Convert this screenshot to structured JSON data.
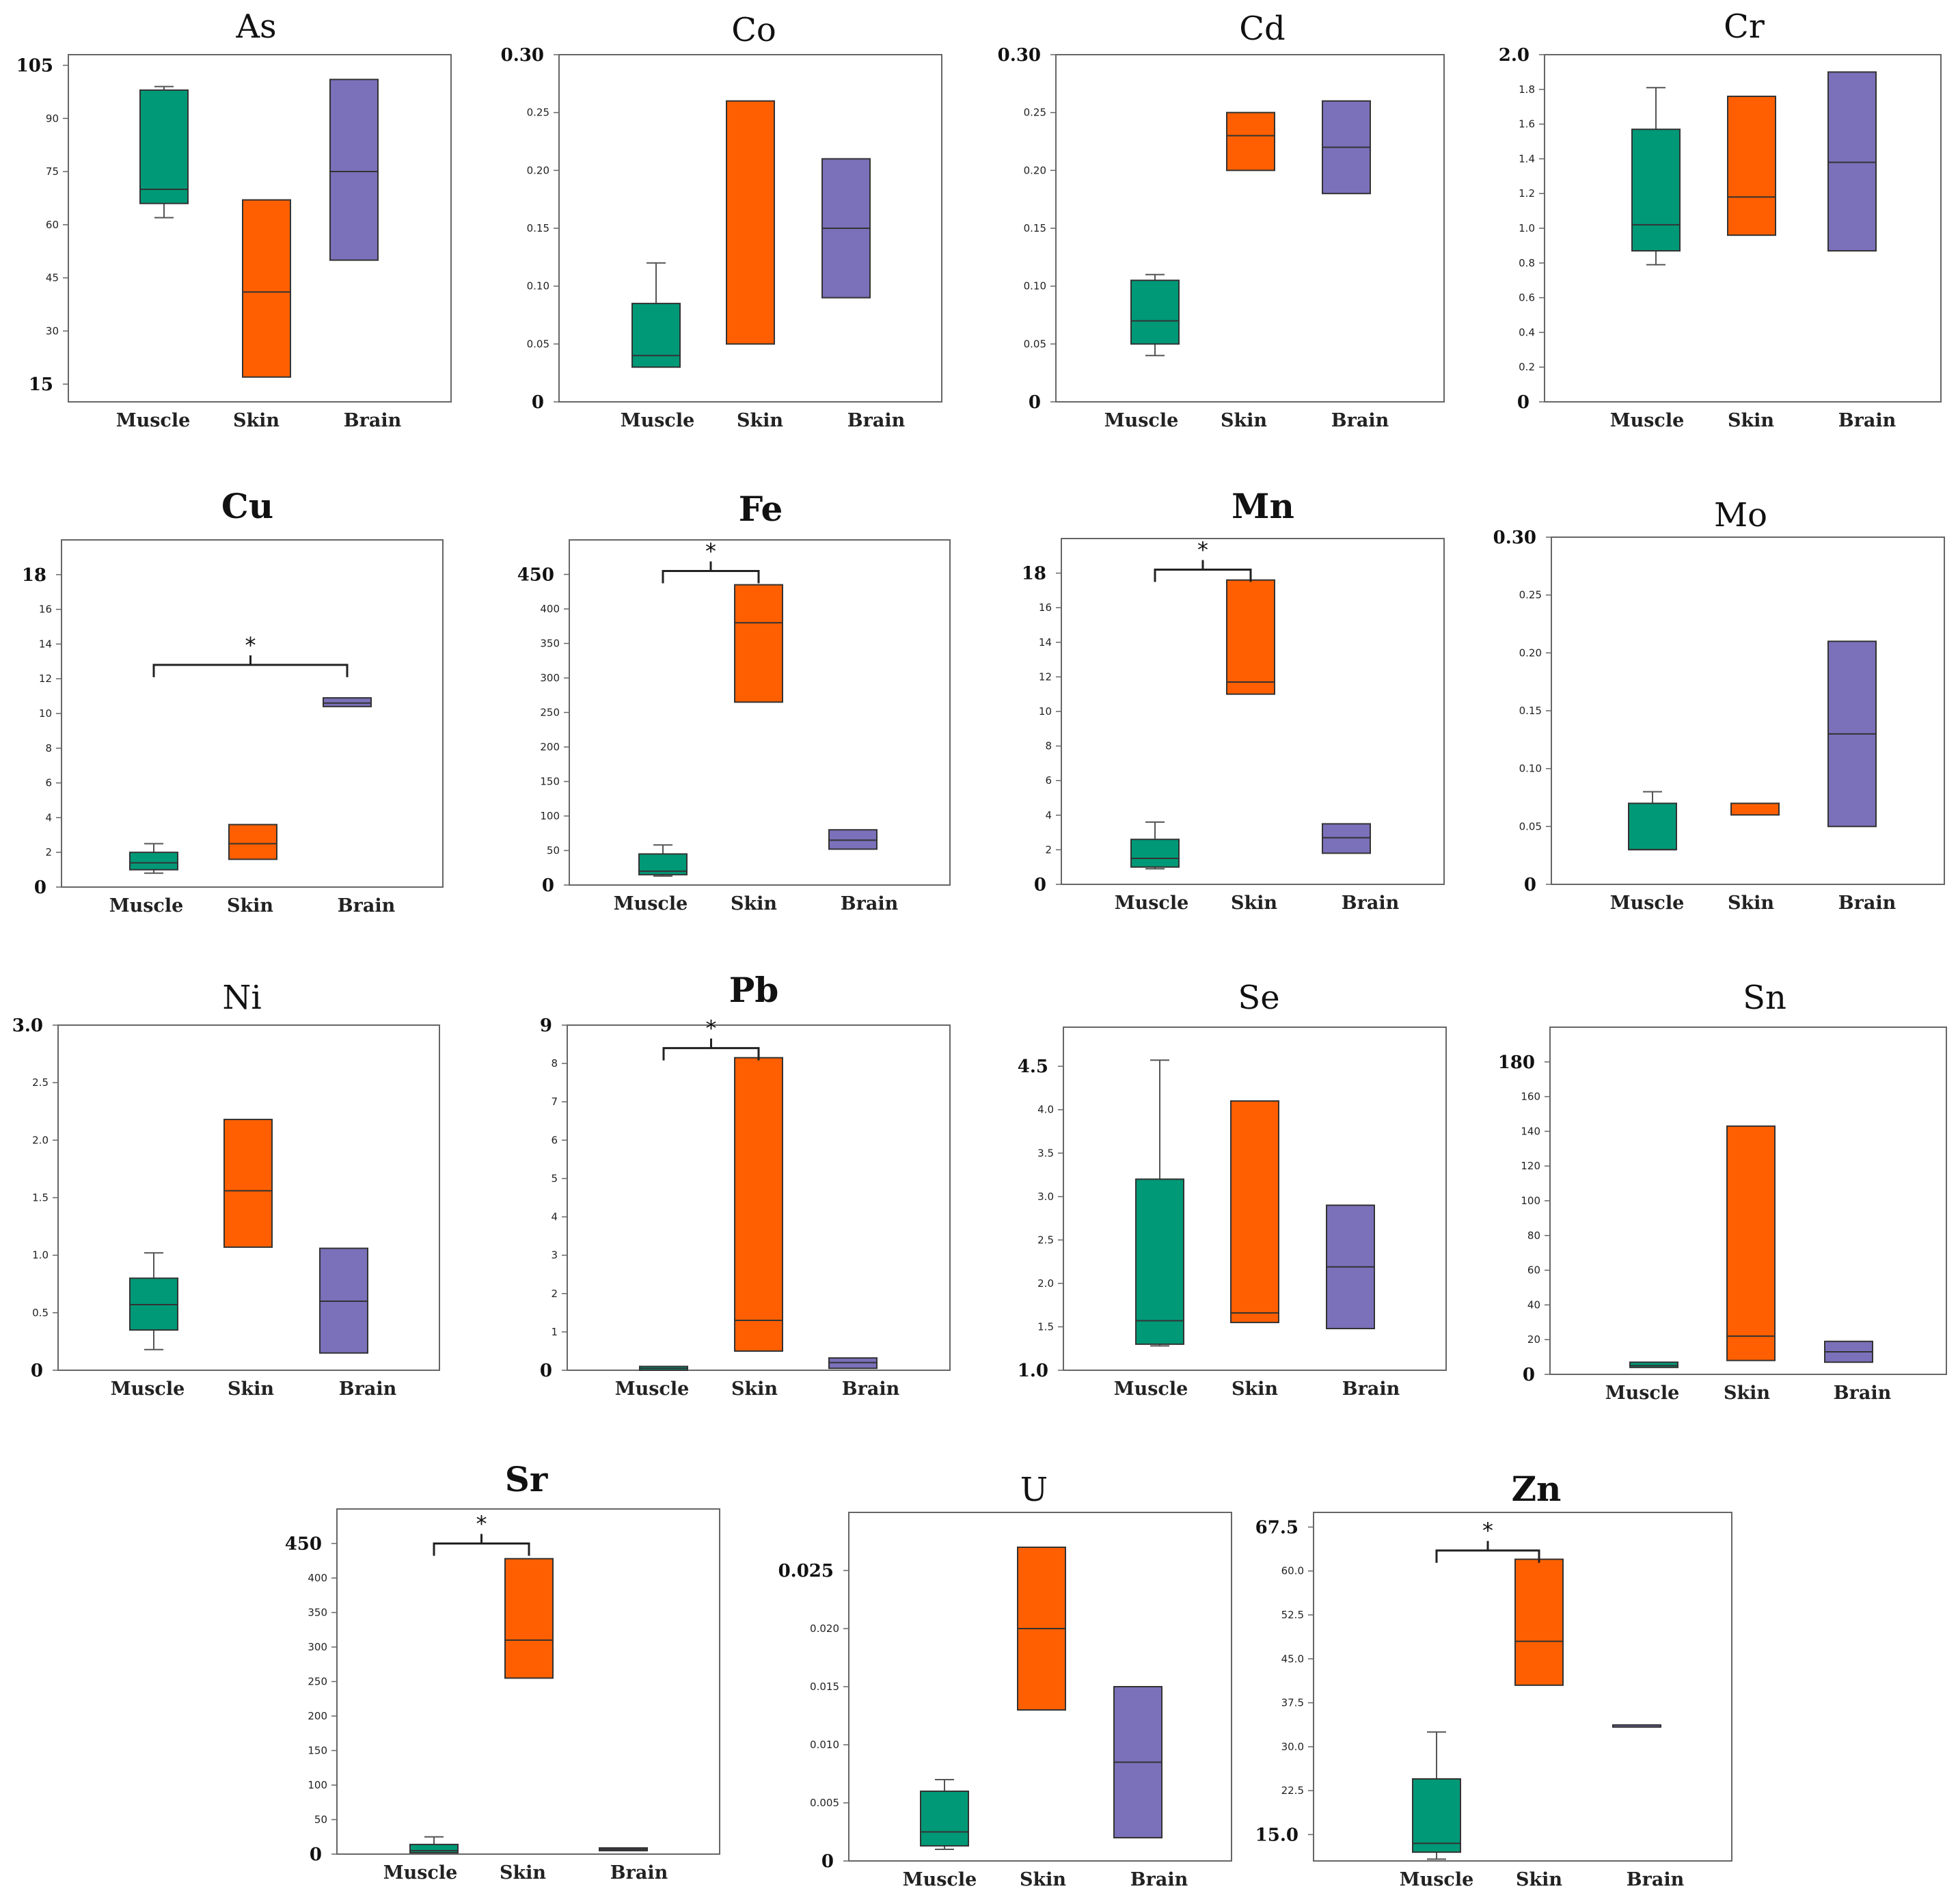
{
  "figure_description": "",
  "colors": {
    "Muscle": "#009977",
    "Skin": "#FF5F00",
    "Brain": "#7B70BA",
    "axis": "#666666",
    "text": "#111111"
  },
  "chart_data": [
    {
      "type": "box",
      "title": "As",
      "bold_title": false,
      "categories": [
        "Muscle",
        "Skin",
        "Brain"
      ],
      "ylim": [
        10,
        108
      ],
      "yticks": [
        15,
        30,
        45,
        60,
        75,
        90,
        105
      ],
      "major_ticks": [
        15,
        105
      ],
      "series": [
        {
          "name": "Muscle",
          "q1": 66,
          "median": 70,
          "q3": 98,
          "whisker_low": 62,
          "whisker_high": 99
        },
        {
          "name": "Skin",
          "q1": 17,
          "median": 41,
          "q3": 67,
          "whisker_low": null,
          "whisker_high": null
        },
        {
          "name": "Brain",
          "q1": 50,
          "median": 75,
          "q3": 101,
          "whisker_low": null,
          "whisker_high": null
        }
      ],
      "significance": null
    },
    {
      "type": "box",
      "title": "Co",
      "bold_title": false,
      "categories": [
        "Muscle",
        "Skin",
        "Brain"
      ],
      "ylim": [
        0,
        0.3
      ],
      "yticks": [
        0,
        0.05,
        0.1,
        0.15,
        0.2,
        0.25,
        0.3
      ],
      "ytick_labels": [
        "0",
        "0.05",
        "0.10",
        "0.15",
        "0.20",
        "0.25",
        "0.30"
      ],
      "major_ticks": [
        0,
        0.3
      ],
      "series": [
        {
          "name": "Muscle",
          "q1": 0.03,
          "median": 0.04,
          "q3": 0.085,
          "whisker_low": null,
          "whisker_high": 0.12
        },
        {
          "name": "Skin",
          "q1": 0.05,
          "median": null,
          "q3": 0.26,
          "whisker_low": null,
          "whisker_high": null
        },
        {
          "name": "Brain",
          "q1": 0.09,
          "median": 0.15,
          "q3": 0.21,
          "whisker_low": null,
          "whisker_high": null
        }
      ],
      "significance": null
    },
    {
      "type": "box",
      "title": "Cd",
      "bold_title": false,
      "categories": [
        "Muscle",
        "Skin",
        "Brain"
      ],
      "ylim": [
        0,
        0.3
      ],
      "yticks": [
        0,
        0.05,
        0.1,
        0.15,
        0.2,
        0.25,
        0.3
      ],
      "ytick_labels": [
        "0",
        "0.05",
        "0.10",
        "0.15",
        "0.20",
        "0.25",
        "0.30"
      ],
      "major_ticks": [
        0,
        0.3
      ],
      "series": [
        {
          "name": "Muscle",
          "q1": 0.05,
          "median": 0.07,
          "q3": 0.105,
          "whisker_low": 0.04,
          "whisker_high": 0.11
        },
        {
          "name": "Skin",
          "q1": 0.2,
          "median": 0.23,
          "q3": 0.25,
          "whisker_low": null,
          "whisker_high": null
        },
        {
          "name": "Brain",
          "q1": 0.18,
          "median": 0.22,
          "q3": 0.26,
          "whisker_low": null,
          "whisker_high": null
        }
      ],
      "significance": null
    },
    {
      "type": "box",
      "title": "Cr",
      "bold_title": false,
      "categories": [
        "Muscle",
        "Skin",
        "Brain"
      ],
      "ylim": [
        0,
        2.0
      ],
      "yticks": [
        0,
        0.2,
        0.4,
        0.6,
        0.8,
        1.0,
        1.2,
        1.4,
        1.6,
        1.8,
        2.0
      ],
      "ytick_labels": [
        "0",
        "0.2",
        "0.4",
        "0.6",
        "0.8",
        "1.0",
        "1.2",
        "1.4",
        "1.6",
        "1.8",
        "2.0"
      ],
      "major_ticks": [
        0,
        2.0
      ],
      "series": [
        {
          "name": "Muscle",
          "q1": 0.87,
          "median": 1.02,
          "q3": 1.57,
          "whisker_low": 0.79,
          "whisker_high": 1.81
        },
        {
          "name": "Skin",
          "q1": 0.96,
          "median": 1.18,
          "q3": 1.76,
          "whisker_low": null,
          "whisker_high": null
        },
        {
          "name": "Brain",
          "q1": 0.87,
          "median": 1.38,
          "q3": 1.9,
          "whisker_low": null,
          "whisker_high": null
        }
      ],
      "significance": null
    },
    {
      "type": "box",
      "title": "Cu",
      "bold_title": true,
      "categories": [
        "Muscle",
        "Skin",
        "Brain"
      ],
      "ylim": [
        0,
        20
      ],
      "yticks": [
        0,
        2,
        4,
        6,
        8,
        10,
        12,
        14,
        16,
        18
      ],
      "major_ticks": [
        0,
        18
      ],
      "series": [
        {
          "name": "Muscle",
          "q1": 1.0,
          "median": 1.4,
          "q3": 2.0,
          "whisker_low": 0.8,
          "whisker_high": 2.5
        },
        {
          "name": "Skin",
          "q1": 1.6,
          "median": 2.5,
          "q3": 3.6,
          "whisker_low": null,
          "whisker_high": null
        },
        {
          "name": "Brain",
          "q1": 10.4,
          "median": 10.6,
          "q3": 10.9,
          "whisker_low": null,
          "whisker_high": null
        }
      ],
      "significance": {
        "from": "Muscle",
        "to": "Brain",
        "y": 12.8,
        "label": "*"
      }
    },
    {
      "type": "box",
      "title": "Fe",
      "bold_title": true,
      "categories": [
        "Muscle",
        "Skin",
        "Brain"
      ],
      "ylim": [
        0,
        500
      ],
      "yticks": [
        0,
        50,
        100,
        150,
        200,
        250,
        300,
        350,
        400,
        450
      ],
      "major_ticks": [
        0,
        450
      ],
      "series": [
        {
          "name": "Muscle",
          "q1": 15,
          "median": 20,
          "q3": 45,
          "whisker_low": 13,
          "whisker_high": 58
        },
        {
          "name": "Skin",
          "q1": 265,
          "median": 380,
          "q3": 435,
          "whisker_low": null,
          "whisker_high": null
        },
        {
          "name": "Brain",
          "q1": 52,
          "median": 65,
          "q3": 80,
          "whisker_low": null,
          "whisker_high": null
        }
      ],
      "significance": {
        "from": "Muscle",
        "to": "Skin",
        "y": 455,
        "label": "*"
      }
    },
    {
      "type": "box",
      "title": "Mn",
      "bold_title": true,
      "categories": [
        "Muscle",
        "Skin",
        "Brain"
      ],
      "ylim": [
        0,
        20
      ],
      "yticks": [
        0,
        2,
        4,
        6,
        8,
        10,
        12,
        14,
        16,
        18
      ],
      "major_ticks": [
        0,
        18
      ],
      "series": [
        {
          "name": "Muscle",
          "q1": 1.0,
          "median": 1.5,
          "q3": 2.6,
          "whisker_low": 0.9,
          "whisker_high": 3.6
        },
        {
          "name": "Skin",
          "q1": 11.0,
          "median": 11.7,
          "q3": 17.6,
          "whisker_low": null,
          "whisker_high": null
        },
        {
          "name": "Brain",
          "q1": 1.8,
          "median": 2.7,
          "q3": 3.5,
          "whisker_low": null,
          "whisker_high": null
        }
      ],
      "significance": {
        "from": "Muscle",
        "to": "Skin",
        "y": 18.2,
        "label": "*"
      }
    },
    {
      "type": "box",
      "title": "Mo",
      "bold_title": false,
      "categories": [
        "Muscle",
        "Skin",
        "Brain"
      ],
      "ylim": [
        0,
        0.3
      ],
      "yticks": [
        0,
        0.05,
        0.1,
        0.15,
        0.2,
        0.25,
        0.3
      ],
      "ytick_labels": [
        "0",
        "0.05",
        "0.10",
        "0.15",
        "0.20",
        "0.25",
        "0.30"
      ],
      "major_ticks": [
        0,
        0.3
      ],
      "series": [
        {
          "name": "Muscle",
          "q1": 0.03,
          "median": 0.03,
          "q3": 0.07,
          "whisker_low": null,
          "whisker_high": 0.08
        },
        {
          "name": "Skin",
          "q1": 0.06,
          "median": 0.07,
          "q3": 0.07,
          "whisker_low": null,
          "whisker_high": null
        },
        {
          "name": "Brain",
          "q1": 0.05,
          "median": 0.13,
          "q3": 0.21,
          "whisker_low": null,
          "whisker_high": null
        }
      ],
      "significance": null
    },
    {
      "type": "box",
      "title": "Ni",
      "bold_title": false,
      "categories": [
        "Muscle",
        "Skin",
        "Brain"
      ],
      "ylim": [
        0,
        3.0
      ],
      "yticks": [
        0,
        0.5,
        1.0,
        1.5,
        2.0,
        2.5,
        3.0
      ],
      "ytick_labels": [
        "0",
        "0.5",
        "1.0",
        "1.5",
        "2.0",
        "2.5",
        "3.0"
      ],
      "major_ticks": [
        0,
        3.0
      ],
      "series": [
        {
          "name": "Muscle",
          "q1": 0.35,
          "median": 0.57,
          "q3": 0.8,
          "whisker_low": 0.18,
          "whisker_high": 1.02
        },
        {
          "name": "Skin",
          "q1": 1.07,
          "median": 1.56,
          "q3": 2.18,
          "whisker_low": null,
          "whisker_high": null
        },
        {
          "name": "Brain",
          "q1": 0.15,
          "median": 0.6,
          "q3": 1.06,
          "whisker_low": null,
          "whisker_high": null
        }
      ],
      "significance": null
    },
    {
      "type": "box",
      "title": "Pb",
      "bold_title": true,
      "categories": [
        "Muscle",
        "Skin",
        "Brain"
      ],
      "ylim": [
        0,
        9
      ],
      "yticks": [
        0,
        1,
        2,
        3,
        4,
        5,
        6,
        7,
        8,
        9
      ],
      "major_ticks": [
        0,
        9
      ],
      "series": [
        {
          "name": "Muscle",
          "q1": 0.0,
          "median": 0.05,
          "q3": 0.1,
          "whisker_low": null,
          "whisker_high": null
        },
        {
          "name": "Skin",
          "q1": 0.5,
          "median": 1.3,
          "q3": 8.15,
          "whisker_low": null,
          "whisker_high": null
        },
        {
          "name": "Brain",
          "q1": 0.05,
          "median": 0.2,
          "q3": 0.32,
          "whisker_low": null,
          "whisker_high": null
        }
      ],
      "significance": {
        "from": "Muscle",
        "to": "Skin",
        "y": 8.4,
        "label": "*"
      }
    },
    {
      "type": "box",
      "title": "Se",
      "bold_title": false,
      "categories": [
        "Muscle",
        "Skin",
        "Brain"
      ],
      "ylim": [
        1.0,
        4.95
      ],
      "yticks": [
        1.0,
        1.5,
        2.0,
        2.5,
        3.0,
        3.5,
        4.0,
        4.5
      ],
      "ytick_labels": [
        "1.0",
        "1.5",
        "2.0",
        "2.5",
        "3.0",
        "3.5",
        "4.0",
        "4.5"
      ],
      "major_ticks": [
        1.0,
        4.5
      ],
      "series": [
        {
          "name": "Muscle",
          "q1": 1.3,
          "median": 1.57,
          "q3": 3.2,
          "whisker_low": 1.28,
          "whisker_high": 4.57
        },
        {
          "name": "Skin",
          "q1": 1.55,
          "median": 1.66,
          "q3": 4.1,
          "whisker_low": null,
          "whisker_high": null
        },
        {
          "name": "Brain",
          "q1": 1.48,
          "median": 2.19,
          "q3": 2.9,
          "whisker_low": null,
          "whisker_high": null
        }
      ],
      "significance": null
    },
    {
      "type": "box",
      "title": "Sn",
      "bold_title": false,
      "categories": [
        "Muscle",
        "Skin",
        "Brain"
      ],
      "ylim": [
        0,
        200
      ],
      "yticks": [
        0,
        20,
        40,
        60,
        80,
        100,
        120,
        140,
        160,
        180
      ],
      "major_ticks": [
        0,
        180
      ],
      "series": [
        {
          "name": "Muscle",
          "q1": 4,
          "median": 5,
          "q3": 7,
          "whisker_low": null,
          "whisker_high": null
        },
        {
          "name": "Skin",
          "q1": 8,
          "median": 22,
          "q3": 143,
          "whisker_low": null,
          "whisker_high": null
        },
        {
          "name": "Brain",
          "q1": 7,
          "median": 13,
          "q3": 19,
          "whisker_low": null,
          "whisker_high": null
        }
      ],
      "significance": null
    },
    {
      "type": "box",
      "title": "Sr",
      "bold_title": true,
      "categories": [
        "Muscle",
        "Skin",
        "Brain"
      ],
      "ylim": [
        0,
        500
      ],
      "yticks": [
        0,
        50,
        100,
        150,
        200,
        250,
        300,
        350,
        400,
        450
      ],
      "major_ticks": [
        0,
        450
      ],
      "series": [
        {
          "name": "Muscle",
          "q1": 2,
          "median": 5,
          "q3": 14,
          "whisker_low": null,
          "whisker_high": 25
        },
        {
          "name": "Skin",
          "q1": 255,
          "median": 310,
          "q3": 428,
          "whisker_low": null,
          "whisker_high": null
        },
        {
          "name": "Brain",
          "q1": 5,
          "median": 7,
          "q3": 9,
          "whisker_low": null,
          "whisker_high": null
        }
      ],
      "significance": {
        "from": "Muscle",
        "to": "Skin",
        "y": 450,
        "label": "*"
      }
    },
    {
      "type": "box",
      "title": "U",
      "bold_title": false,
      "categories": [
        "Muscle",
        "Skin",
        "Brain"
      ],
      "ylim": [
        0,
        0.03
      ],
      "yticks": [
        0,
        0.005,
        0.01,
        0.015,
        0.02,
        0.025
      ],
      "ytick_labels": [
        "0",
        "0.005",
        "0.010",
        "0.015",
        "0.020",
        "0.025"
      ],
      "major_ticks": [
        0,
        0.025
      ],
      "series": [
        {
          "name": "Muscle",
          "q1": 0.0013,
          "median": 0.0025,
          "q3": 0.006,
          "whisker_low": 0.001,
          "whisker_high": 0.007
        },
        {
          "name": "Skin",
          "q1": 0.013,
          "median": 0.02,
          "q3": 0.027,
          "whisker_low": null,
          "whisker_high": null
        },
        {
          "name": "Brain",
          "q1": 0.002,
          "median": 0.0085,
          "q3": 0.015,
          "whisker_low": null,
          "whisker_high": null
        }
      ],
      "significance": null
    },
    {
      "type": "box",
      "title": "Zn",
      "bold_title": true,
      "categories": [
        "Muscle",
        "Skin",
        "Brain"
      ],
      "ylim": [
        10.5,
        70
      ],
      "yticks": [
        15.0,
        22.5,
        30.0,
        37.5,
        45.0,
        52.5,
        60.0,
        67.5
      ],
      "ytick_labels": [
        "15.0",
        "22.5",
        "30.0",
        "37.5",
        "45.0",
        "52.5",
        "60.0",
        "67.5"
      ],
      "major_ticks": [
        15.0,
        67.5
      ],
      "series": [
        {
          "name": "Muscle",
          "q1": 12,
          "median": 13.5,
          "q3": 24.5,
          "whisker_low": 10.8,
          "whisker_high": 32.5
        },
        {
          "name": "Skin",
          "q1": 40.5,
          "median": 48,
          "q3": 62,
          "whisker_low": null,
          "whisker_high": null
        },
        {
          "name": "Brain",
          "q1": 33.7,
          "median": 33.7,
          "q3": 33.7,
          "whisker_low": null,
          "whisker_high": null
        }
      ],
      "significance": {
        "from": "Muscle",
        "to": "Skin",
        "y": 63.5,
        "label": "*"
      }
    }
  ]
}
